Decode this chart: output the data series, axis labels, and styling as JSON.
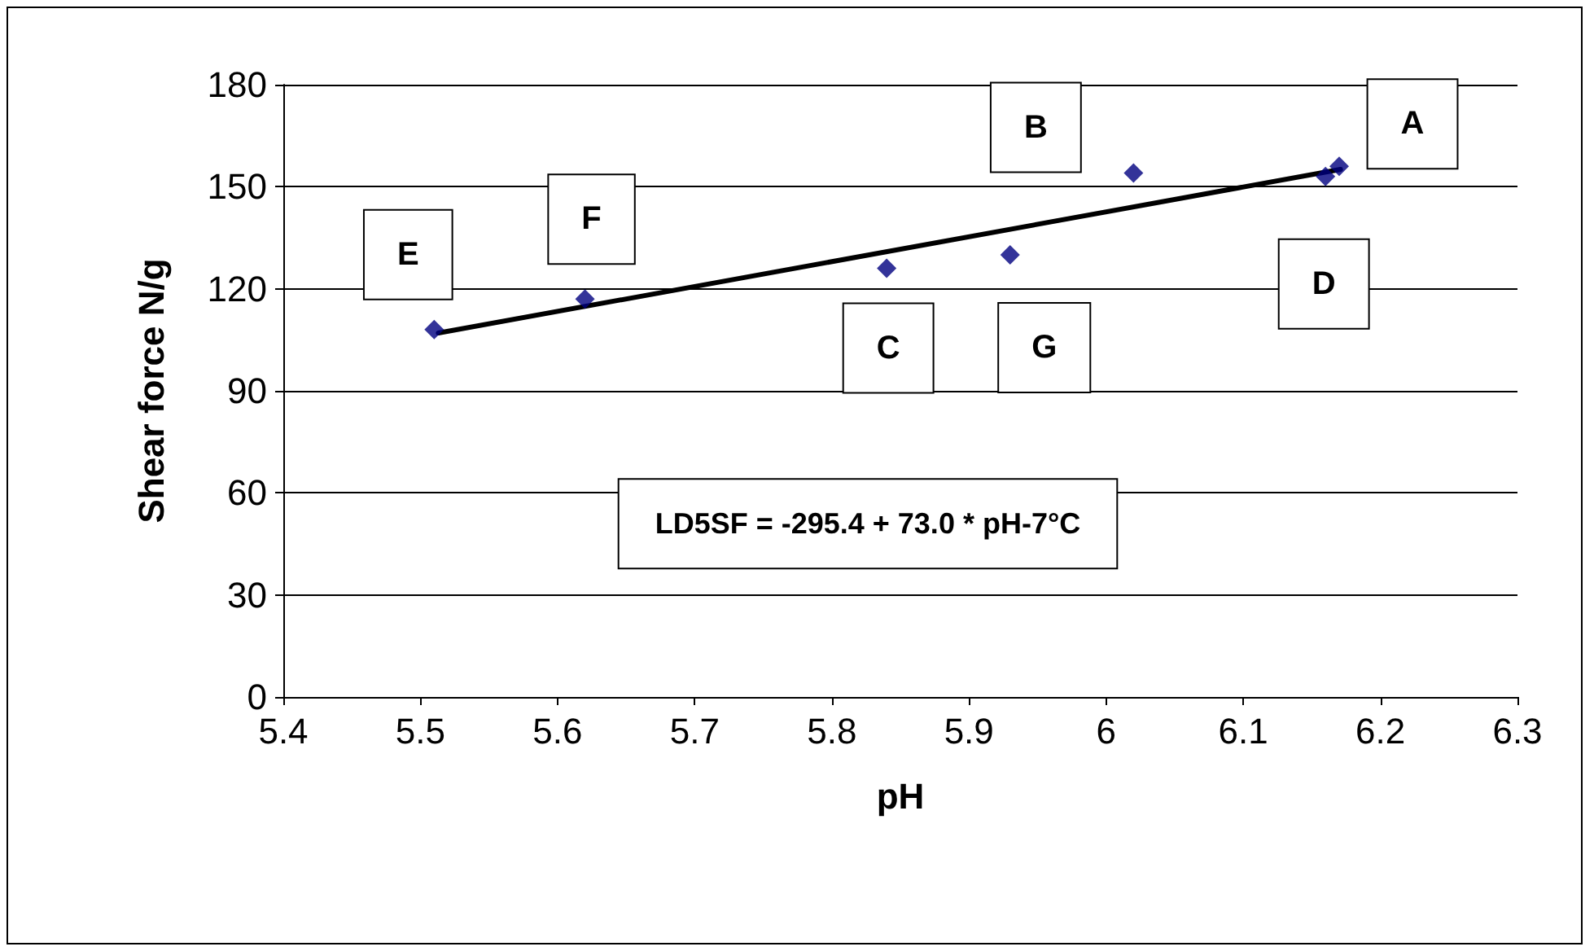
{
  "chart_data": {
    "type": "scatter",
    "xlabel": "pH",
    "ylabel": "Shear force N/g",
    "xlim": [
      5.4,
      6.3
    ],
    "xticks": [
      5.4,
      5.5,
      5.6,
      5.7,
      5.8,
      5.9,
      6,
      6.1,
      6.2,
      6.3
    ],
    "ylim": [
      0,
      180
    ],
    "yticks": [
      0,
      30,
      60,
      90,
      120,
      150,
      180
    ],
    "grid": "y",
    "series": [
      {
        "marker": "diamond",
        "color": "#000080",
        "x": [
          5.51,
          5.62,
          5.84,
          5.93,
          6.02,
          6.16,
          6.17
        ],
        "values": [
          108,
          117,
          126,
          130,
          154,
          153,
          156
        ]
      },
      {
        "type": "line",
        "marker": "none",
        "color": "#000000",
        "x": [
          5.513,
          6.171
        ],
        "values": [
          107.0,
          155.1
        ],
        "line_style": "solid"
      }
    ],
    "annotations": [
      {
        "text": "E",
        "x": 5.51,
        "y": 108
      },
      {
        "text": "F",
        "x": 5.62,
        "y": 117
      },
      {
        "text": "C",
        "x": 5.84,
        "y": 126
      },
      {
        "text": "G",
        "x": 5.93,
        "y": 130
      },
      {
        "text": "B",
        "x": 6.02,
        "y": 154
      },
      {
        "text": "D",
        "x": 6.16,
        "y": 153
      },
      {
        "text": "A",
        "x": 6.17,
        "y": 156
      },
      "LD5SF = -295.4 + 73.0 * pH-7°C"
    ]
  }
}
